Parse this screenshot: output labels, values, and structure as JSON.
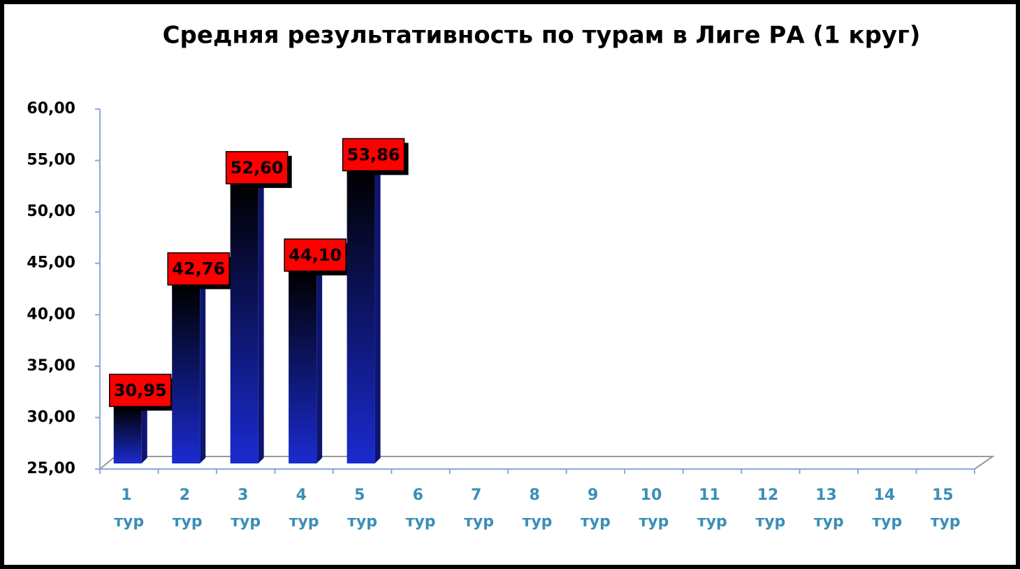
{
  "chart_data": {
    "type": "bar",
    "title": "Средняя результативность по турам в Лиге РА (1 круг)",
    "categories": [
      "1 тур",
      "2 тур",
      "3 тур",
      "4 тур",
      "5 тур",
      "6 тур",
      "7 тур",
      "8 тур",
      "9 тур",
      "10 тур",
      "11 тур",
      "12 тур",
      "13 тур",
      "14 тур",
      "15 тур"
    ],
    "values": [
      30.95,
      42.76,
      52.6,
      44.1,
      53.86,
      null,
      null,
      null,
      null,
      null,
      null,
      null,
      null,
      null,
      null
    ],
    "value_labels": [
      "30,95",
      "42,76",
      "52,60",
      "44,10",
      "53,86",
      null,
      null,
      null,
      null,
      null,
      null,
      null,
      null,
      null,
      null
    ],
    "color": "#1a2bd0",
    "ylim": [
      25,
      60
    ],
    "yticks": [
      {
        "value": 25,
        "label": "25,00"
      },
      {
        "value": 30,
        "label": "30,00"
      },
      {
        "value": 35,
        "label": "35,00"
      },
      {
        "value": 40,
        "label": "40,00"
      },
      {
        "value": 45,
        "label": "45,00"
      },
      {
        "value": 50,
        "label": "50,00"
      },
      {
        "value": 55,
        "label": "55,00"
      },
      {
        "value": 60,
        "label": "60,00"
      }
    ],
    "label_color": "#ff0000"
  }
}
